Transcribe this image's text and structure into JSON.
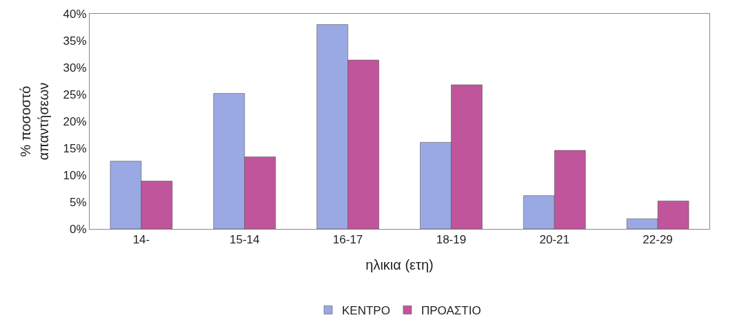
{
  "chart_data": {
    "type": "bar",
    "xlabel": "ηλικια (ετη)",
    "ylabel": "% ποσοστό\nαπαντήσεων",
    "categories": [
      "14-",
      "15-14",
      "16-17",
      "18-19",
      "20-21",
      "22-29"
    ],
    "series": [
      {
        "name": "ΚΕΝΤΡΟ",
        "color": "#9aa8e4",
        "values": [
          12.6,
          25.2,
          38.0,
          16.1,
          6.2,
          1.9
        ]
      },
      {
        "name": "ΠΡΟΑΣΤΙΟ",
        "color": "#c0559c",
        "values": [
          8.9,
          13.4,
          31.4,
          26.8,
          14.6,
          5.2
        ]
      }
    ],
    "ylim": [
      0,
      40
    ],
    "yticks": [
      {
        "value": 0,
        "label": "0%"
      },
      {
        "value": 5,
        "label": "5%"
      },
      {
        "value": 10,
        "label": "10%"
      },
      {
        "value": 15,
        "label": "15%"
      },
      {
        "value": 20,
        "label": "20%"
      },
      {
        "value": 25,
        "label": "25%"
      },
      {
        "value": 30,
        "label": "30%"
      },
      {
        "value": 35,
        "label": "35%"
      },
      {
        "value": 40,
        "label": "40%"
      }
    ],
    "grid": false,
    "legend": "bottom"
  }
}
